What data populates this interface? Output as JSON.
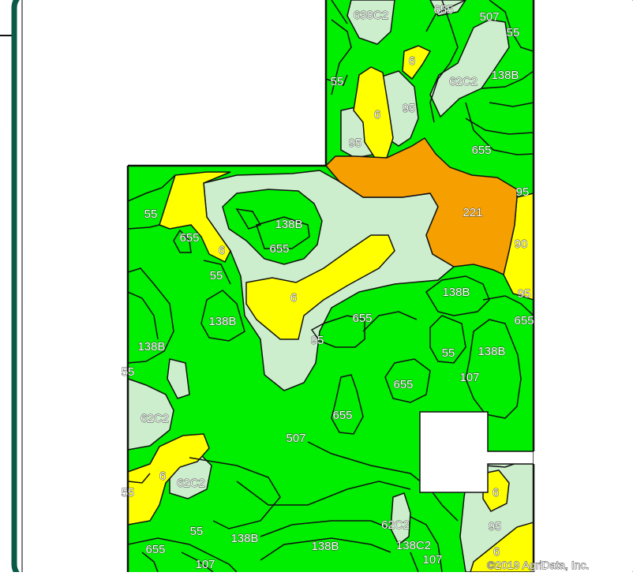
{
  "map": {
    "colors": {
      "frame": "#0b5a48",
      "background": "#ffffff",
      "green": "#00ee00",
      "light_green": "#cceecc",
      "yellow": "#ffff00",
      "orange": "#f5a000",
      "boundary": "#111111"
    },
    "soil_labels": [
      "638C2",
      "655",
      "507",
      "55",
      "6",
      "55",
      "62C2",
      "138B",
      "6",
      "95",
      "95",
      "655",
      "95",
      "221",
      "55",
      "655",
      "138B",
      "6",
      "655",
      "90",
      "55",
      "6",
      "138B",
      "95",
      "138B",
      "655",
      "655",
      "95",
      "138B",
      "55",
      "138B",
      "55",
      "107",
      "655",
      "655",
      "62C2",
      "507",
      "6",
      "62C2",
      "55",
      "6",
      "95",
      "55",
      "138B",
      "62C2",
      "655",
      "138B",
      "138C2",
      "107",
      "107",
      "6"
    ],
    "copyright": "©2019 AgriData, Inc."
  }
}
